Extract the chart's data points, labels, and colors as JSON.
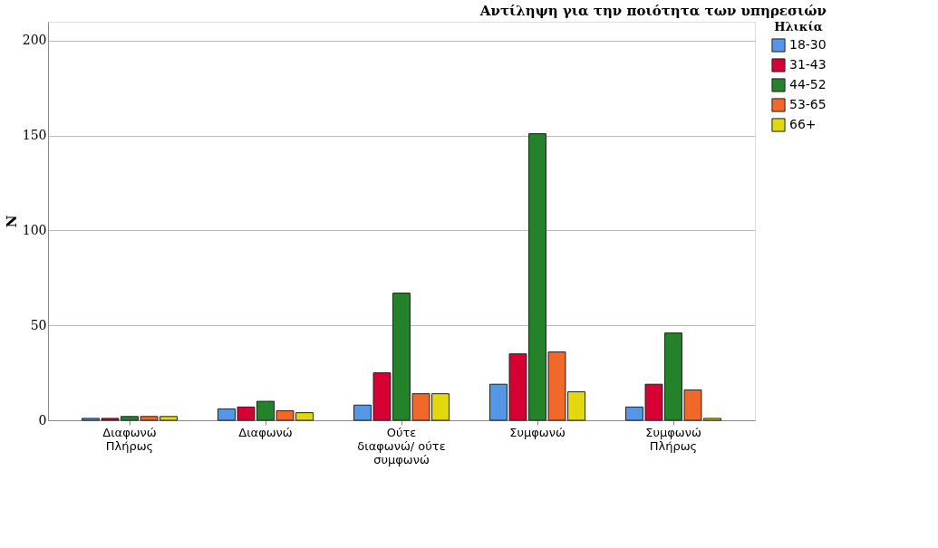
{
  "chart_data": {
    "type": "bar",
    "title": "Αντίληψη για την ποιότητα των υπηρεσιών",
    "ylabel": "N",
    "legend_title": "Ηλικία",
    "categories": [
      "Διαφωνώ\nΠλήρως",
      "Διαφωνώ",
      "Ούτε\nδιαφωνώ/ ούτε\nσυμφωνώ",
      "Συμφωνώ",
      "Συμφωνώ\nΠλήρως"
    ],
    "series": [
      {
        "name": "18-30",
        "color": "#5596e6",
        "values": [
          1,
          6,
          8,
          19,
          7
        ]
      },
      {
        "name": "31-43",
        "color": "#d60032",
        "values": [
          1,
          7,
          25,
          35,
          19
        ]
      },
      {
        "name": "44-52",
        "color": "#24822a",
        "values": [
          2,
          10,
          67,
          151,
          46
        ]
      },
      {
        "name": "53-65",
        "color": "#f0682a",
        "values": [
          2,
          5,
          14,
          36,
          16
        ]
      },
      {
        "name": "66+",
        "color": "#e2d80e",
        "values": [
          2,
          4,
          14,
          15,
          1
        ]
      }
    ],
    "ylim": [
      0,
      210
    ],
    "yticks": [
      0,
      50,
      100,
      150,
      200
    ],
    "grid": "y",
    "legend": "top right"
  }
}
